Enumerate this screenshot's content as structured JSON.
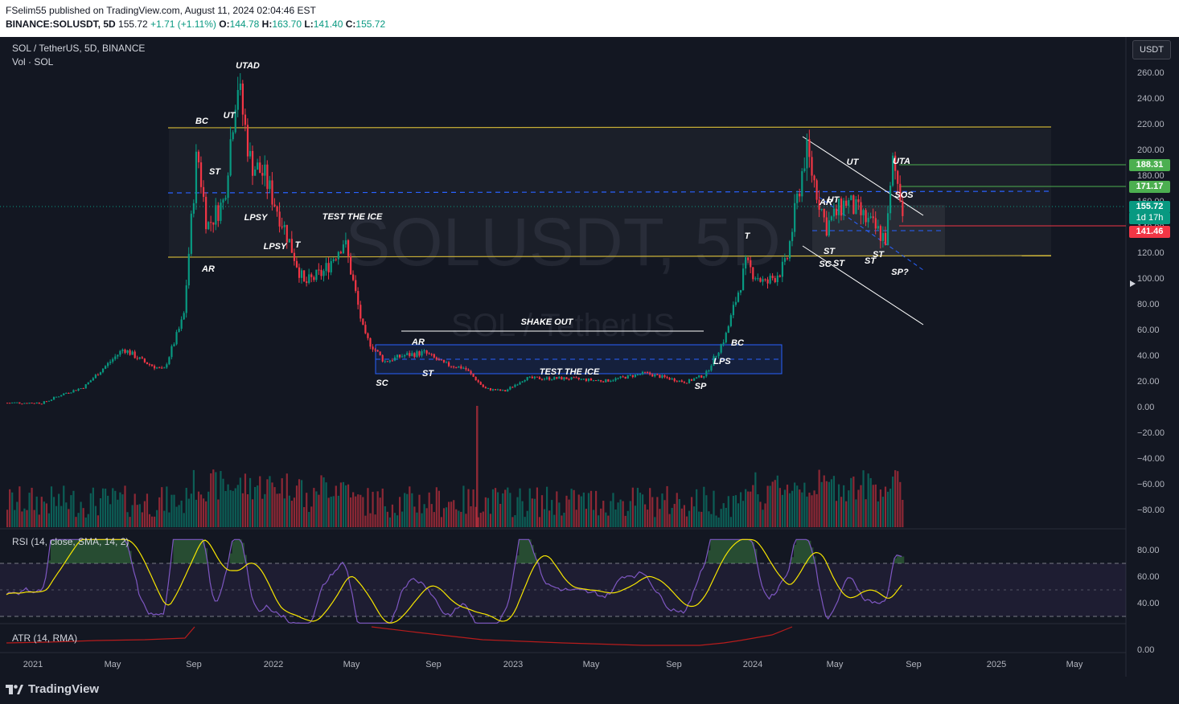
{
  "header": {
    "published_line": "FSelim55 published on TradingView.com, August 11, 2024 02:04:46 EST",
    "symbol": "BINANCE:SOLUSDT, 5D",
    "last": "155.72",
    "change": "+1.71 (+1.11%)",
    "o_label": "O:",
    "o": "144.78",
    "h_label": "H:",
    "h": "163.70",
    "l_label": "L:",
    "l": "141.40",
    "c_label": "C:",
    "c": "155.72"
  },
  "legend": {
    "title": "SOL / TetherUS, 5D, BINANCE",
    "volume": "Vol · SOL",
    "rsi": "RSI (14, close, SMA, 14, 2)",
    "atr": "ATR (14, RMA)"
  },
  "currency_button": "USDT",
  "watermark": {
    "main": "SOLUSDT, 5D",
    "sub": "SOL / TetherUS"
  },
  "price_tags": [
    {
      "value": "188.31",
      "color": "#4caf50"
    },
    {
      "value": "171.17",
      "color": "#4caf50"
    },
    {
      "value": "155.72",
      "color": "#089981",
      "sub": "1d 17h"
    },
    {
      "value": "141.46",
      "color": "#f23645"
    }
  ],
  "footer": {
    "brand": "TradingView"
  },
  "colors": {
    "up": "#089981",
    "down": "#f23645",
    "accent_line": "#c9b037",
    "box": "#2962ff"
  },
  "chart_data": {
    "type": "candlestick",
    "title": "SOL / TetherUS, 5D, BINANCE",
    "x_ticks": [
      "2021",
      "May",
      "Sep",
      "2022",
      "May",
      "Sep",
      "2023",
      "May",
      "Sep",
      "2024",
      "May",
      "Sep",
      "2025",
      "May"
    ],
    "y_ticks": [
      "260.00",
      "240.00",
      "220.00",
      "200.00",
      "180.00",
      "160.00",
      "140.00",
      "120.00",
      "100.00",
      "80.00",
      "60.00",
      "40.00",
      "20.00",
      "0.00",
      "−20.00",
      "−40.00",
      "−60.00",
      "−80.00"
    ],
    "ylim": [
      -80,
      260
    ],
    "rsi_ticks": [
      "80.00",
      "60.00",
      "40.00"
    ],
    "atr_ticks": [
      "0.00"
    ],
    "price_path": [
      [
        "2021-01",
        3
      ],
      [
        "2021-02",
        10
      ],
      [
        "2021-03",
        15
      ],
      [
        "2021-04",
        30
      ],
      [
        "2021-05",
        45
      ],
      [
        "2021-06",
        35
      ],
      [
        "2021-07",
        28
      ],
      [
        "2021-08",
        70
      ],
      [
        "2021-09-05",
        200
      ],
      [
        "2021-09-20",
        140
      ],
      [
        "2021-10",
        160
      ],
      [
        "2021-11-05",
        255
      ],
      [
        "2021-11-25",
        190
      ],
      [
        "2021-12",
        180
      ],
      [
        "2022-01",
        140
      ],
      [
        "2022-02",
        95
      ],
      [
        "2022-03",
        105
      ],
      [
        "2022-04",
        130
      ],
      [
        "2022-05",
        55
      ],
      [
        "2022-06",
        35
      ],
      [
        "2022-07",
        40
      ],
      [
        "2022-08",
        42
      ],
      [
        "2022-09",
        33
      ],
      [
        "2022-10",
        30
      ],
      [
        "2022-11",
        14
      ],
      [
        "2022-12",
        12
      ],
      [
        "2023-01",
        22
      ],
      [
        "2023-03",
        22
      ],
      [
        "2023-05",
        20
      ],
      [
        "2023-07",
        26
      ],
      [
        "2023-09",
        19
      ],
      [
        "2023-10",
        25
      ],
      [
        "2023-11",
        55
      ],
      [
        "2023-12",
        110
      ],
      [
        "2024-01",
        95
      ],
      [
        "2024-02",
        110
      ],
      [
        "2024-03-15",
        200
      ],
      [
        "2024-04",
        140
      ],
      [
        "2024-05",
        160
      ],
      [
        "2024-06",
        145
      ],
      [
        "2024-07",
        130
      ],
      [
        "2024-07-25",
        190
      ],
      [
        "2024-08-10",
        155.72
      ]
    ],
    "horizontal_levels": [
      216,
      117
    ],
    "annotations": [
      "UTAD",
      "BC",
      "UT",
      "ST",
      "LPSY",
      "LPSY",
      "T",
      "AR",
      "TEST THE ICE",
      "SHAKE OUT",
      "AR",
      "ST",
      "SC",
      "TEST THE ICE",
      "SP",
      "LPS",
      "BC",
      "T",
      "AR",
      "UT",
      "ST",
      "SC",
      "ST",
      "UT",
      "UTA",
      "SOS",
      "ST",
      "ST",
      "SP?"
    ]
  }
}
